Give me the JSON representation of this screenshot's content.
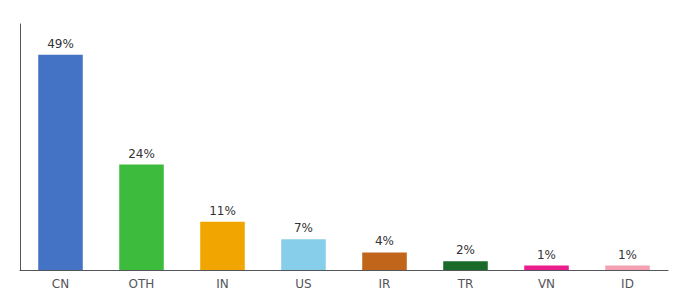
{
  "chart_data": {
    "type": "bar",
    "categories": [
      "CN",
      "OTH",
      "IN",
      "US",
      "IR",
      "TR",
      "VN",
      "ID"
    ],
    "values": [
      49,
      24,
      11,
      7,
      4,
      2,
      1,
      1
    ],
    "value_labels": [
      "49%",
      "24%",
      "11%",
      "7%",
      "4%",
      "2%",
      "1%",
      "1%"
    ],
    "colors": [
      "#4472c4",
      "#3dbb3d",
      "#f0a500",
      "#87ceeb",
      "#c0651a",
      "#1a6b2a",
      "#e91e8c",
      "#f4a0b0"
    ],
    "ylim": [
      0,
      56
    ],
    "data_labels": true,
    "tick_labels": "x",
    "grid": false
  }
}
